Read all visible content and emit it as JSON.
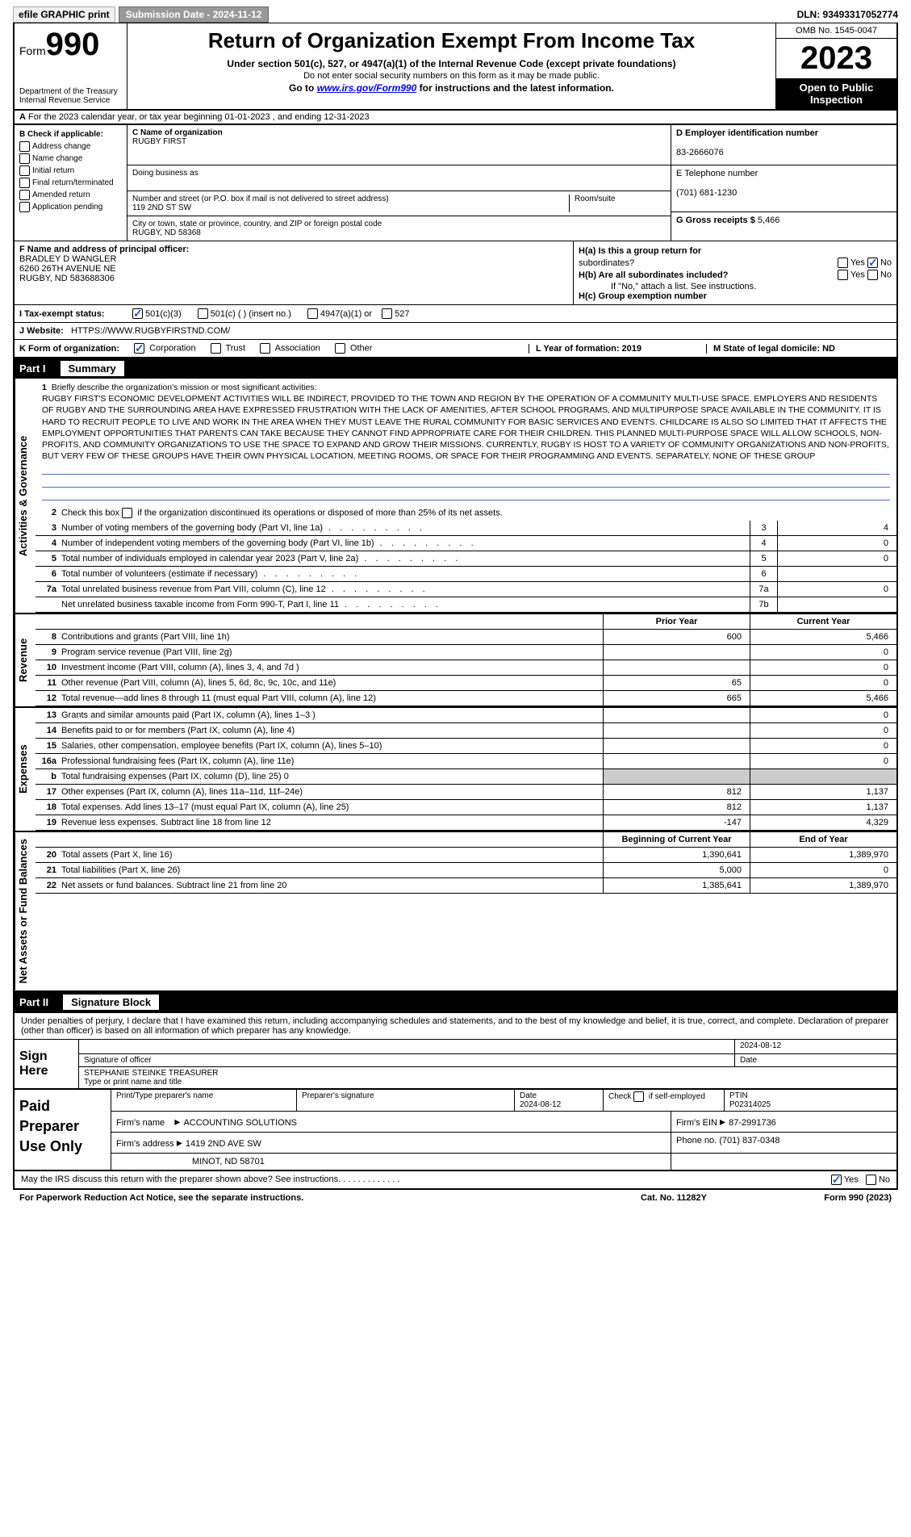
{
  "topbar": {
    "efile": "efile GRAPHIC print",
    "submission_label": "Submission Date - 2024-11-12",
    "dln": "DLN: 93493317052774"
  },
  "header": {
    "form_prefix": "Form",
    "form_num": "990",
    "title": "Return of Organization Exempt From Income Tax",
    "subtitle": "Under section 501(c), 527, or 4947(a)(1) of the Internal Revenue Code (except private foundations)",
    "warn": "Do not enter social security numbers on this form as it may be made public.",
    "goto_pre": "Go to ",
    "goto_link": "www.irs.gov/Form990",
    "goto_post": " for instructions and the latest information.",
    "dept": "Department of the Treasury\nInternal Revenue Service",
    "omb": "OMB No. 1545-0047",
    "year": "2023",
    "inspect": "Open to Public Inspection"
  },
  "row_a": {
    "label_a": "A",
    "text": "For the 2023 calendar year, or tax year beginning 01-01-2023   , and ending 12-31-2023"
  },
  "col_b": {
    "hdr": "B Check if applicable:",
    "items": [
      "Address change",
      "Name change",
      "Initial return",
      "Final return/terminated",
      "Amended return",
      "Application pending"
    ]
  },
  "col_c": {
    "name_lbl": "C Name of organization",
    "name": "RUGBY FIRST",
    "dba_lbl": "Doing business as",
    "addr_lbl": "Number and street (or P.O. box if mail is not delivered to street address)",
    "addr": "119 2ND ST SW",
    "room_lbl": "Room/suite",
    "city_lbl": "City or town, state or province, country, and ZIP or foreign postal code",
    "city": "RUGBY, ND  58368"
  },
  "col_de": {
    "d_lbl": "D Employer identification number",
    "d_val": "83-2666076",
    "e_lbl": "E Telephone number",
    "e_val": "(701) 681-1230",
    "g_lbl": "G Gross receipts $",
    "g_val": "5,466"
  },
  "col_f": {
    "lbl": "F  Name and address of principal officer:",
    "name": "BRADLEY D WANGLER",
    "addr1": "6260 26TH AVENUE NE",
    "addr2": "RUGBY, ND  583688306"
  },
  "col_h": {
    "ha_lbl": "H(a)  Is this a group return for",
    "ha_lbl2": "subordinates?",
    "hb_lbl": "H(b)  Are all subordinates included?",
    "hb_note": "If \"No,\" attach a list. See instructions.",
    "hc_lbl": "H(c)  Group exemption number",
    "yes": "Yes",
    "no": "No"
  },
  "row_i": {
    "lbl": "I   Tax-exempt status:",
    "opt1": "501(c)(3)",
    "opt2": "501(c) (  ) (insert no.)",
    "opt3": "4947(a)(1) or",
    "opt4": "527"
  },
  "row_j": {
    "lbl": "J   Website:",
    "val": "HTTPS://WWW.RUGBYFIRSTND.COM/"
  },
  "row_k": {
    "lbl": "K Form of organization:",
    "opts": [
      "Corporation",
      "Trust",
      "Association",
      "Other"
    ],
    "l_lbl": "L Year of formation: 2019",
    "m_lbl": "M State of legal domicile: ND"
  },
  "part1": {
    "num": "Part I",
    "title": "Summary"
  },
  "vert": {
    "activities": "Activities & Governance",
    "revenue": "Revenue",
    "expenses": "Expenses",
    "netassets": "Net Assets or Fund Balances"
  },
  "summary": {
    "q1": "Briefly describe the organization's mission or most significant activities:",
    "mission": "RUGBY FIRST'S ECONOMIC DEVELOPMENT ACTIVITIES WILL BE INDIRECT, PROVIDED TO THE TOWN AND REGION BY THE OPERATION OF A COMMUNITY MULTI-USE SPACE. EMPLOYERS AND RESIDENTS OF RUGBY AND THE SURROUNDING AREA HAVE EXPRESSED FRUSTRATION WITH THE LACK OF AMENITIES, AFTER SCHOOL PROGRAMS, AND MULTIPURPOSE SPACE AVAILABLE IN THE COMMUNITY. IT IS HARD TO RECRUIT PEOPLE TO LIVE AND WORK IN THE AREA WHEN THEY MUST LEAVE THE RURAL COMMUNITY FOR BASIC SERVICES AND EVENTS. CHILDCARE IS ALSO SO LIMITED THAT IT AFFECTS THE EMPLOYMENT OPPORTUNITIES THAT PARENTS CAN TAKE BECAUSE THEY CANNOT FIND APPROPRIATE CARE FOR THEIR CHILDREN. THIS PLANNED MULTI-PURPOSE SPACE WILL ALLOW SCHOOLS, NON-PROFITS, AND COMMUNITY ORGANIZATIONS TO USE THE SPACE TO EXPAND AND GROW THEIR MISSIONS. CURRENTLY, RUGBY IS HOST TO A VARIETY OF COMMUNITY ORGANIZATIONS AND NON-PROFITS, BUT VERY FEW OF THESE GROUPS HAVE THEIR OWN PHYSICAL LOCATION, MEETING ROOMS, OR SPACE FOR THEIR PROGRAMMING AND EVENTS. SEPARATELY, NONE OF THESE GROUP",
    "q2": "Check this box          if the organization discontinued its operations or disposed of more than 25% of its net assets.",
    "rows_right": [
      {
        "n": "3",
        "lbl": "Number of voting members of the governing body (Part VI, line 1a)",
        "box": "3",
        "val": "4"
      },
      {
        "n": "4",
        "lbl": "Number of independent voting members of the governing body (Part VI, line 1b)",
        "box": "4",
        "val": "0"
      },
      {
        "n": "5",
        "lbl": "Total number of individuals employed in calendar year 2023 (Part V, line 2a)",
        "box": "5",
        "val": "0"
      },
      {
        "n": "6",
        "lbl": "Total number of volunteers (estimate if necessary)",
        "box": "6",
        "val": ""
      },
      {
        "n": "7a",
        "lbl": "Total unrelated business revenue from Part VIII, column (C), line 12",
        "box": "7a",
        "val": "0"
      },
      {
        "n": "",
        "lbl": "Net unrelated business taxable income from Form 990-T, Part I, line 11",
        "box": "7b",
        "val": ""
      }
    ],
    "hdr_prior": "Prior Year",
    "hdr_current": "Current Year",
    "revenue": [
      {
        "n": "8",
        "lbl": "Contributions and grants (Part VIII, line 1h)",
        "c1": "600",
        "c2": "5,466"
      },
      {
        "n": "9",
        "lbl": "Program service revenue (Part VIII, line 2g)",
        "c1": "",
        "c2": "0"
      },
      {
        "n": "10",
        "lbl": "Investment income (Part VIII, column (A), lines 3, 4, and 7d )",
        "c1": "",
        "c2": "0"
      },
      {
        "n": "11",
        "lbl": "Other revenue (Part VIII, column (A), lines 5, 6d, 8c, 9c, 10c, and 11e)",
        "c1": "65",
        "c2": "0"
      },
      {
        "n": "12",
        "lbl": "Total revenue—add lines 8 through 11 (must equal Part VIII, column (A), line 12)",
        "c1": "665",
        "c2": "5,466"
      }
    ],
    "expenses": [
      {
        "n": "13",
        "lbl": "Grants and similar amounts paid (Part IX, column (A), lines 1–3 )",
        "c1": "",
        "c2": "0"
      },
      {
        "n": "14",
        "lbl": "Benefits paid to or for members (Part IX, column (A), line 4)",
        "c1": "",
        "c2": "0"
      },
      {
        "n": "15",
        "lbl": "Salaries, other compensation, employee benefits (Part IX, column (A), lines 5–10)",
        "c1": "",
        "c2": "0"
      },
      {
        "n": "16a",
        "lbl": "Professional fundraising fees (Part IX, column (A), line 11e)",
        "c1": "",
        "c2": "0"
      },
      {
        "n": "b",
        "lbl": "Total fundraising expenses (Part IX, column (D), line 25) 0",
        "c1": "GRAY",
        "c2": "GRAY"
      },
      {
        "n": "17",
        "lbl": "Other expenses (Part IX, column (A), lines 11a–11d, 11f–24e)",
        "c1": "812",
        "c2": "1,137"
      },
      {
        "n": "18",
        "lbl": "Total expenses. Add lines 13–17 (must equal Part IX, column (A), line 25)",
        "c1": "812",
        "c2": "1,137"
      },
      {
        "n": "19",
        "lbl": "Revenue less expenses. Subtract line 18 from line 12",
        "c1": "-147",
        "c2": "4,329"
      }
    ],
    "hdr_begin": "Beginning of Current Year",
    "hdr_end": "End of Year",
    "netassets": [
      {
        "n": "20",
        "lbl": "Total assets (Part X, line 16)",
        "c1": "1,390,641",
        "c2": "1,389,970"
      },
      {
        "n": "21",
        "lbl": "Total liabilities (Part X, line 26)",
        "c1": "5,000",
        "c2": "0"
      },
      {
        "n": "22",
        "lbl": "Net assets or fund balances. Subtract line 21 from line 20",
        "c1": "1,385,641",
        "c2": "1,389,970"
      }
    ]
  },
  "part2": {
    "num": "Part II",
    "title": "Signature Block"
  },
  "sig": {
    "decl": "Under penalties of perjury, I declare that I have examined this return, including accompanying schedules and statements, and to the best of my knowledge and belief, it is true, correct, and complete. Declaration of preparer (other than officer) is based on all information of which preparer has any knowledge.",
    "sign_here": "Sign Here",
    "sig_officer": "Signature of officer",
    "officer_name": "STEPHANIE STEINKE  TREASURER",
    "officer_title": "Type or print name and title",
    "date_lbl": "Date",
    "date_val": "2024-08-12",
    "paid": "Paid Preparer Use Only",
    "prep_hdr": [
      "Print/Type preparer's name",
      "Preparer's signature",
      "Date\n2024-08-12",
      "Check          if self-employed",
      "PTIN\nP02314025"
    ],
    "firm_name_lbl": "Firm's name",
    "firm_name": "ACCOUNTING SOLUTIONS",
    "firm_ein_lbl": "Firm's EIN",
    "firm_ein": "87-2991736",
    "firm_addr_lbl": "Firm's address",
    "firm_addr1": "1419 2ND AVE SW",
    "firm_addr2": "MINOT, ND  58701",
    "phone_lbl": "Phone no.",
    "phone": "(701) 837-0348",
    "discuss": "May the IRS discuss this return with the preparer shown above? See instructions."
  },
  "footer": {
    "left": "For Paperwork Reduction Act Notice, see the separate instructions.",
    "mid": "Cat. No. 11282Y",
    "right": "Form 990 (2023)"
  }
}
